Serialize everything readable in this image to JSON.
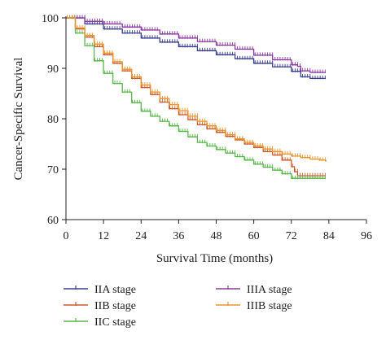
{
  "chart_data": {
    "type": "line",
    "title": "",
    "xlabel": "Survival Time (months)",
    "ylabel": "Cancer-Specific Survival",
    "xlim": [
      0,
      96
    ],
    "ylim": [
      60,
      100
    ],
    "xticks": [
      0,
      12,
      24,
      36,
      48,
      60,
      72,
      84,
      96
    ],
    "yticks": [
      60,
      70,
      80,
      90,
      100
    ],
    "grid": false,
    "legend_position": "bottom",
    "series": [
      {
        "name": "IIA stage",
        "color": "#3b3f8f",
        "x": [
          0,
          6,
          12,
          18,
          24,
          30,
          36,
          42,
          48,
          54,
          60,
          66,
          72,
          75,
          78,
          83
        ],
        "y": [
          100,
          98.8,
          97.8,
          97.0,
          96.0,
          95.2,
          94.3,
          93.5,
          92.7,
          91.9,
          91.0,
          90.3,
          89.4,
          88.3,
          88.0,
          88.0
        ]
      },
      {
        "name": "IIB stage",
        "color": "#cf5a2e",
        "x": [
          0,
          3,
          6,
          9,
          12,
          15,
          18,
          21,
          24,
          27,
          30,
          33,
          36,
          39,
          42,
          45,
          48,
          51,
          54,
          57,
          60,
          63,
          66,
          69,
          72,
          73,
          74,
          78,
          83
        ],
        "y": [
          100,
          97.8,
          96.2,
          94.3,
          92.7,
          91.0,
          89.5,
          88.0,
          86.2,
          84.8,
          83.3,
          82.0,
          80.8,
          79.8,
          78.8,
          78.0,
          77.3,
          76.5,
          75.8,
          75.0,
          74.3,
          73.5,
          72.8,
          71.8,
          70.5,
          69.5,
          68.7,
          68.7,
          68.7
        ]
      },
      {
        "name": "IIC stage",
        "color": "#58b84a",
        "x": [
          0,
          3,
          6,
          9,
          12,
          15,
          18,
          21,
          24,
          27,
          30,
          33,
          36,
          39,
          42,
          45,
          48,
          51,
          54,
          57,
          60,
          63,
          66,
          69,
          72,
          75,
          78,
          83
        ],
        "y": [
          100,
          97.0,
          94.5,
          91.5,
          89.0,
          87.0,
          85.3,
          83.2,
          81.5,
          80.5,
          79.5,
          78.6,
          77.5,
          76.4,
          75.3,
          74.6,
          73.9,
          73.2,
          72.5,
          71.8,
          71.0,
          70.4,
          69.8,
          69.1,
          68.2,
          68.2,
          68.2,
          68.2
        ]
      },
      {
        "name": "IIIA stage",
        "color": "#8a3a9e",
        "x": [
          0,
          6,
          12,
          18,
          24,
          30,
          36,
          42,
          48,
          54,
          60,
          66,
          72,
          74,
          75,
          78,
          83
        ],
        "y": [
          100,
          99.3,
          98.8,
          98.2,
          97.6,
          96.8,
          96.0,
          95.3,
          94.6,
          93.8,
          92.6,
          91.7,
          90.7,
          90.4,
          89.5,
          89.2,
          89.2
        ]
      },
      {
        "name": "IIIB stage",
        "color": "#e8952f",
        "x": [
          0,
          3,
          6,
          9,
          12,
          15,
          18,
          21,
          24,
          27,
          30,
          33,
          36,
          39,
          42,
          45,
          48,
          51,
          54,
          57,
          60,
          63,
          66,
          69,
          72,
          75,
          78,
          81,
          83
        ],
        "y": [
          100,
          98.0,
          96.5,
          94.8,
          93.0,
          91.3,
          89.8,
          88.3,
          86.7,
          85.3,
          84.0,
          82.8,
          81.6,
          80.5,
          79.5,
          78.6,
          77.7,
          76.8,
          76.0,
          75.3,
          74.6,
          74.0,
          73.5,
          73.0,
          72.6,
          72.3,
          72.0,
          71.8,
          71.5
        ]
      }
    ]
  }
}
